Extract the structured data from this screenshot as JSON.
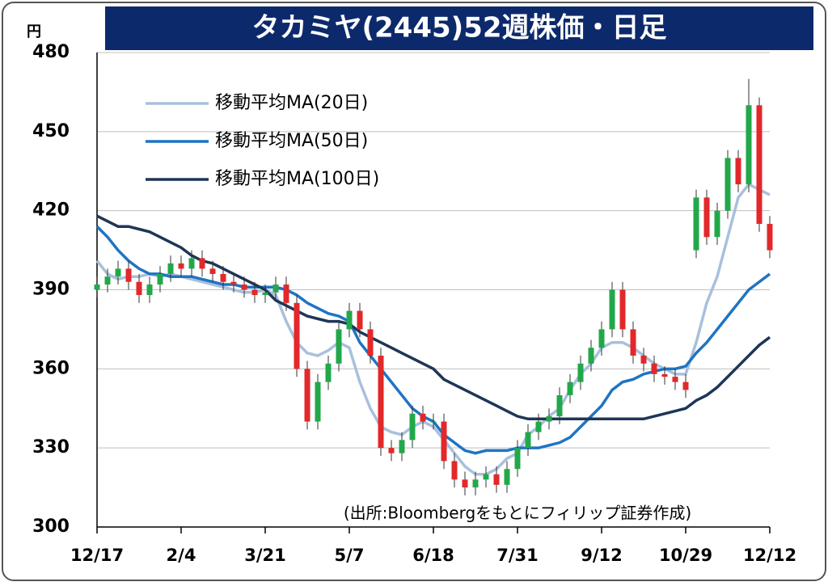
{
  "chart_data": {
    "type": "candlestick",
    "title": "タカミヤ(2445)52週株価・日足",
    "unit": "円",
    "source": "(出所:Bloombergをもとにフィリップ証券作成)",
    "ylim": [
      300,
      480
    ],
    "yticks": [
      300,
      330,
      360,
      390,
      420,
      450,
      480
    ],
    "grid": true,
    "xlim": [
      0,
      64
    ],
    "xticks": [
      {
        "value": 0,
        "label": "12/17"
      },
      {
        "value": 8,
        "label": "2/4"
      },
      {
        "value": 16,
        "label": "3/21"
      },
      {
        "value": 24,
        "label": "5/7"
      },
      {
        "value": 32,
        "label": "6/18"
      },
      {
        "value": 40,
        "label": "7/31"
      },
      {
        "value": 48,
        "label": "9/12"
      },
      {
        "value": 56,
        "label": "10/29"
      },
      {
        "value": 64,
        "label": "12/12"
      }
    ],
    "up_color": "#22a84a",
    "down_color": "#e2282a",
    "open": [
      390,
      392,
      395,
      398,
      393,
      388,
      392,
      396,
      400,
      398,
      402,
      398,
      396,
      393,
      392,
      390,
      388,
      389,
      392,
      385,
      360,
      340,
      355,
      362,
      375,
      382,
      375,
      365,
      330,
      328,
      333,
      343,
      340,
      340,
      325,
      318,
      315,
      318,
      320,
      316,
      322,
      330,
      336,
      340,
      342,
      350,
      355,
      362,
      368,
      375,
      390,
      375,
      365,
      362,
      358,
      357,
      355,
      405,
      425,
      410,
      420,
      440,
      430,
      460,
      415
    ],
    "high": [
      395,
      398,
      401,
      401,
      396,
      395,
      399,
      403,
      403,
      405,
      405,
      401,
      399,
      396,
      395,
      393,
      392,
      395,
      395,
      388,
      363,
      358,
      365,
      378,
      385,
      385,
      378,
      368,
      333,
      336,
      346,
      346,
      343,
      343,
      328,
      321,
      321,
      323,
      323,
      325,
      333,
      339,
      343,
      345,
      353,
      358,
      365,
      371,
      378,
      393,
      393,
      378,
      368,
      365,
      361,
      360,
      358,
      428,
      428,
      423,
      443,
      443,
      470,
      463,
      418
    ],
    "low": [
      387,
      389,
      392,
      390,
      385,
      385,
      389,
      393,
      395,
      395,
      395,
      393,
      390,
      389,
      387,
      385,
      385,
      386,
      382,
      357,
      337,
      337,
      352,
      359,
      372,
      372,
      362,
      327,
      325,
      325,
      330,
      337,
      337,
      322,
      315,
      312,
      312,
      315,
      313,
      313,
      319,
      327,
      333,
      337,
      339,
      347,
      352,
      359,
      365,
      372,
      372,
      362,
      359,
      355,
      354,
      352,
      349,
      402,
      407,
      407,
      417,
      427,
      427,
      412,
      402
    ],
    "close": [
      392,
      395,
      398,
      393,
      388,
      392,
      396,
      400,
      398,
      402,
      398,
      396,
      393,
      392,
      390,
      388,
      389,
      392,
      385,
      360,
      340,
      355,
      362,
      375,
      382,
      375,
      365,
      330,
      328,
      333,
      343,
      340,
      340,
      325,
      318,
      315,
      318,
      320,
      316,
      322,
      330,
      336,
      340,
      342,
      350,
      355,
      362,
      368,
      375,
      390,
      375,
      365,
      362,
      358,
      357,
      355,
      352,
      425,
      410,
      420,
      440,
      430,
      460,
      415,
      405
    ],
    "series": [
      {
        "name": "移動平均MA(20日)",
        "color": "#a8c0dc",
        "values": [
          401,
          396,
          394,
          395,
          395,
          396,
          395,
          396,
          395,
          394,
          393,
          392,
          391,
          390,
          389,
          389,
          390,
          388,
          378,
          370,
          366,
          365,
          367,
          370,
          368,
          355,
          345,
          338,
          336,
          335,
          338,
          340,
          338,
          333,
          328,
          323,
          320,
          320,
          322,
          326,
          328,
          335,
          338,
          342,
          345,
          352,
          358,
          362,
          368,
          370,
          370,
          368,
          365,
          362,
          360,
          358,
          358,
          370,
          385,
          395,
          410,
          425,
          430,
          428,
          426
        ]
      },
      {
        "name": "移動平均MA(50日)",
        "color": "#1f74c2",
        "values": [
          414,
          410,
          405,
          401,
          398,
          396,
          396,
          395,
          395,
          395,
          394,
          393,
          392,
          392,
          391,
          391,
          391,
          391,
          390,
          388,
          385,
          383,
          381,
          380,
          378,
          370,
          365,
          360,
          355,
          350,
          345,
          342,
          340,
          335,
          332,
          329,
          328,
          329,
          329,
          329,
          330,
          330,
          330,
          331,
          332,
          334,
          338,
          342,
          346,
          352,
          355,
          356,
          358,
          359,
          360,
          360,
          361,
          366,
          370,
          375,
          380,
          385,
          390,
          393,
          396
        ]
      },
      {
        "name": "移動平均MA(100日)",
        "color": "#1e3657",
        "values": [
          418,
          416,
          414,
          414,
          413,
          412,
          410,
          408,
          406,
          403,
          401,
          400,
          398,
          396,
          394,
          392,
          390,
          386,
          384,
          382,
          380,
          379,
          378,
          378,
          377,
          374,
          372,
          370,
          368,
          366,
          364,
          362,
          360,
          356,
          354,
          352,
          350,
          348,
          346,
          344,
          342,
          341,
          341,
          341,
          341,
          341,
          341,
          341,
          341,
          341,
          341,
          341,
          341,
          342,
          343,
          344,
          345,
          348,
          350,
          353,
          357,
          361,
          365,
          369,
          372
        ]
      }
    ]
  }
}
